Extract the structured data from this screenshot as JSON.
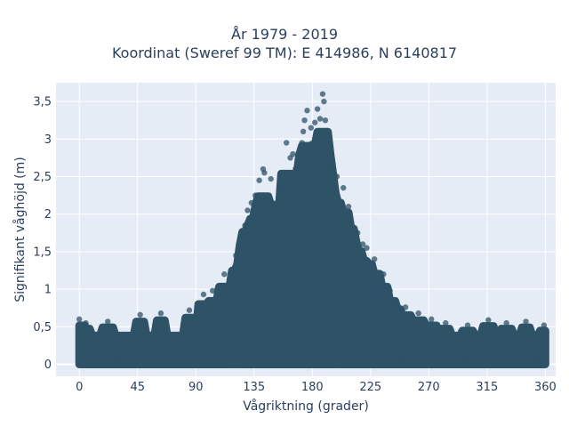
{
  "chart_data": {
    "type": "scatter",
    "title_line1": "År 1979 - 2019",
    "title_line2": "Koordinat (Sweref 99 TM): E 414986, N 6140817",
    "xlabel": "Vågriktning (grader)",
    "ylabel": "Signifikant våghöjd (m)",
    "xlim": [
      -18,
      368
    ],
    "ylim": [
      -0.16,
      3.75
    ],
    "x_ticks": [
      0,
      45,
      90,
      135,
      180,
      225,
      270,
      315,
      360
    ],
    "x_tick_labels": [
      "0",
      "45",
      "90",
      "135",
      "180",
      "225",
      "270",
      "315",
      "360"
    ],
    "y_ticks": [
      0,
      0.5,
      1,
      1.5,
      2,
      2.5,
      3,
      3.5
    ],
    "y_tick_labels": [
      "0",
      "0,5",
      "1",
      "1,5",
      "2",
      "2,5",
      "3",
      "3,5"
    ],
    "grid": true,
    "series": [
      {
        "color": "#2e5266",
        "opacity": 0.75,
        "points": [
          [
            0,
            0.6
          ],
          [
            5,
            0.55
          ],
          [
            22,
            0.57
          ],
          [
            47,
            0.66
          ],
          [
            63,
            0.68
          ],
          [
            85,
            0.72
          ],
          [
            96,
            0.93
          ],
          [
            103,
            0.98
          ],
          [
            112,
            1.2
          ],
          [
            121,
            1.45
          ],
          [
            125,
            1.55
          ],
          [
            128,
            1.85
          ],
          [
            130,
            2.05
          ],
          [
            133,
            2.15
          ],
          [
            136,
            2.25
          ],
          [
            139,
            2.45
          ],
          [
            142,
            2.6
          ],
          [
            143,
            2.55
          ],
          [
            148,
            2.47
          ],
          [
            155,
            2.35
          ],
          [
            160,
            2.95
          ],
          [
            163,
            2.75
          ],
          [
            165,
            2.8
          ],
          [
            167,
            2.6
          ],
          [
            170,
            2.75
          ],
          [
            172,
            2.95
          ],
          [
            173,
            3.1
          ],
          [
            174,
            3.25
          ],
          [
            176,
            3.38
          ],
          [
            179,
            3.15
          ],
          [
            181,
            2.85
          ],
          [
            182,
            3.22
          ],
          [
            184,
            3.4
          ],
          [
            186,
            3.27
          ],
          [
            188,
            3.6
          ],
          [
            189,
            3.5
          ],
          [
            190,
            3.25
          ],
          [
            192,
            2.95
          ],
          [
            195,
            2.65
          ],
          [
            199,
            2.5
          ],
          [
            204,
            2.35
          ],
          [
            208,
            2.1
          ],
          [
            210,
            1.9
          ],
          [
            215,
            1.75
          ],
          [
            219,
            1.6
          ],
          [
            222,
            1.55
          ],
          [
            228,
            1.4
          ],
          [
            235,
            1.2
          ],
          [
            240,
            0.98
          ],
          [
            244,
            0.85
          ],
          [
            252,
            0.76
          ],
          [
            262,
            0.68
          ],
          [
            272,
            0.6
          ],
          [
            283,
            0.55
          ],
          [
            300,
            0.52
          ],
          [
            316,
            0.59
          ],
          [
            330,
            0.55
          ],
          [
            345,
            0.57
          ],
          [
            359,
            0.52
          ],
          [
            0,
            0.0
          ],
          [
            10,
            0.05
          ],
          [
            30,
            0.08
          ],
          [
            60,
            0.06
          ],
          [
            70,
            0.02
          ],
          [
            120,
            0.0
          ],
          [
            150,
            0.02
          ],
          [
            200,
            0.01
          ],
          [
            250,
            0.03
          ],
          [
            300,
            0.05
          ],
          [
            355,
            0.07
          ]
        ]
      }
    ]
  }
}
